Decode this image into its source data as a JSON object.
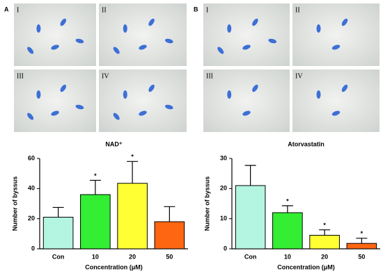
{
  "panels": [
    {
      "label": "A",
      "images": [
        "I",
        "II",
        "III",
        "IV"
      ]
    },
    {
      "label": "B",
      "images": [
        "I",
        "II",
        "III",
        "IV"
      ]
    }
  ],
  "chart_data": [
    {
      "type": "bar",
      "title": "NAD⁺",
      "x_label": "Concentration (μM)",
      "y_label": "Number of byssus",
      "categories": [
        "Con",
        "10",
        "20",
        "50"
      ],
      "values": [
        21,
        36,
        43.5,
        18
      ],
      "errors": [
        6.5,
        9.5,
        14.5,
        10
      ],
      "significance": [
        null,
        "*",
        "*",
        null
      ],
      "colors": [
        "#b3f5e0",
        "#33ee33",
        "#ffff33",
        "#ff6611"
      ],
      "ylim": [
        0,
        60
      ],
      "yticks": [
        0,
        20,
        40,
        60
      ]
    },
    {
      "type": "bar",
      "title": "Atorvastatin",
      "x_label": "Concentration (μM)",
      "y_label": "Number of byssus",
      "categories": [
        "Con",
        "10",
        "20",
        "50"
      ],
      "values": [
        21,
        12,
        4.5,
        1.8
      ],
      "errors": [
        6.7,
        2.3,
        1.8,
        1.7
      ],
      "significance": [
        null,
        "*",
        "*",
        "*"
      ],
      "colors": [
        "#b3f5e0",
        "#33ee33",
        "#ffff33",
        "#ff6611"
      ],
      "ylim": [
        0,
        30
      ],
      "yticks": [
        0,
        10,
        20,
        30
      ]
    }
  ]
}
